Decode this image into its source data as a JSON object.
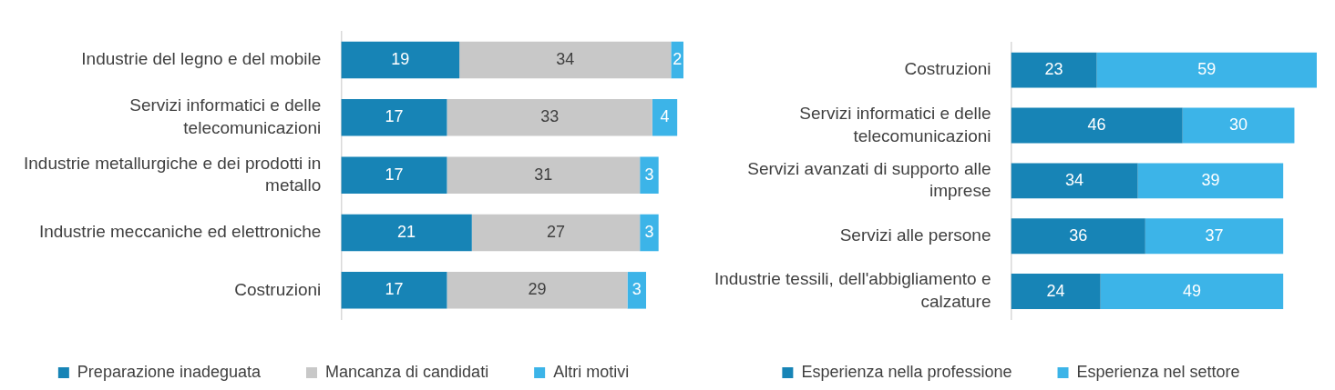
{
  "chart_data": [
    {
      "type": "bar",
      "orientation": "horizontal",
      "stacked": true,
      "data_labels": true,
      "legend": "bottom",
      "tick_labels": "y",
      "categories": [
        "Industrie del legno e del mobile",
        "Servizi informatici e delle telecomunicazioni",
        "Industrie metallurgiche e dei prodotti in metallo",
        "Industrie meccaniche ed elettroniche",
        "Costruzioni"
      ],
      "series": [
        {
          "name": "Preparazione inadeguata",
          "color": "#1784b6",
          "values": [
            19,
            17,
            17,
            21,
            17
          ]
        },
        {
          "name": "Mancanza di candidati",
          "color": "#c8c8c8",
          "values": [
            34,
            33,
            31,
            27,
            29
          ]
        },
        {
          "name": "Altri motivi",
          "color": "#3cb4e8",
          "values": [
            2,
            4,
            3,
            3,
            3
          ]
        }
      ]
    },
    {
      "type": "bar",
      "orientation": "horizontal",
      "stacked": true,
      "data_labels": true,
      "legend": "bottom",
      "tick_labels": "y",
      "categories": [
        "Costruzioni",
        "Servizi informatici e delle telecomunicazioni",
        "Servizi avanzati di supporto alle imprese",
        "Servizi alle persone",
        "Industrie tessili, dell'abbigliamento e calzature"
      ],
      "series": [
        {
          "name": "Esperienza nella professione",
          "color": "#1784b6",
          "values": [
            23,
            46,
            34,
            36,
            24
          ]
        },
        {
          "name": "Esperienza nel settore",
          "color": "#3cb4e8",
          "values": [
            59,
            30,
            39,
            37,
            49
          ]
        }
      ]
    }
  ]
}
